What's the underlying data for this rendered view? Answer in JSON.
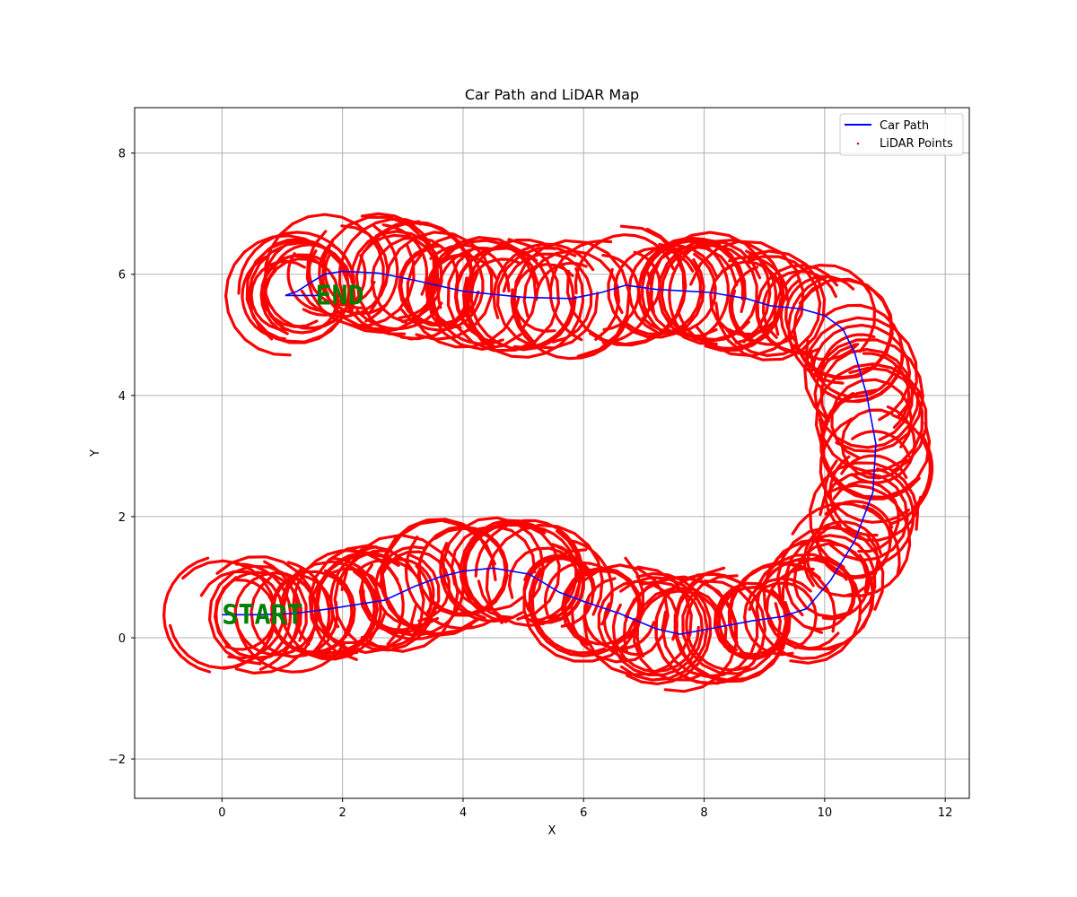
{
  "chart_data": {
    "type": "scatter",
    "title": "Car Path and LiDAR Map",
    "xlabel": "X",
    "ylabel": "Y",
    "xlim": [
      -1.45,
      12.4
    ],
    "ylim": [
      -2.65,
      8.75
    ],
    "xticks": [
      0,
      2,
      4,
      6,
      8,
      10,
      12
    ],
    "yticks": [
      -2,
      0,
      2,
      4,
      6,
      8
    ],
    "xtick_labels": [
      "0",
      "2",
      "4",
      "6",
      "8",
      "10",
      "12"
    ],
    "ytick_labels": [
      "−2",
      "0",
      "2",
      "4",
      "6",
      "8"
    ],
    "grid": true,
    "legend": {
      "placement": "top-right",
      "entries": [
        "Car Path",
        "LiDAR Points"
      ]
    },
    "colors": {
      "path": "#0000ff",
      "lidar": "#ff0000",
      "annotation": "#008000",
      "grid": "#b0b0b0"
    },
    "series": [
      {
        "name": "Car Path",
        "kind": "line",
        "points": [
          [
            0.0,
            0.38
          ],
          [
            0.6,
            0.38
          ],
          [
            1.2,
            0.4
          ],
          [
            1.8,
            0.48
          ],
          [
            2.7,
            0.62
          ],
          [
            3.2,
            0.85
          ],
          [
            3.6,
            1.0
          ],
          [
            4.0,
            1.1
          ],
          [
            4.5,
            1.15
          ],
          [
            5.1,
            1.05
          ],
          [
            5.6,
            0.75
          ],
          [
            6.0,
            0.6
          ],
          [
            6.6,
            0.4
          ],
          [
            7.2,
            0.15
          ],
          [
            7.6,
            0.06
          ],
          [
            8.1,
            0.15
          ],
          [
            8.8,
            0.28
          ],
          [
            9.3,
            0.35
          ],
          [
            9.7,
            0.48
          ],
          [
            10.1,
            0.95
          ],
          [
            10.5,
            1.6
          ],
          [
            10.8,
            2.4
          ],
          [
            10.85,
            3.2
          ],
          [
            10.7,
            4.0
          ],
          [
            10.5,
            4.7
          ],
          [
            10.3,
            5.1
          ],
          [
            10.0,
            5.32
          ],
          [
            9.6,
            5.43
          ],
          [
            9.1,
            5.48
          ],
          [
            8.7,
            5.6
          ],
          [
            8.1,
            5.7
          ],
          [
            7.2,
            5.75
          ],
          [
            6.7,
            5.82
          ],
          [
            6.3,
            5.7
          ],
          [
            5.8,
            5.6
          ],
          [
            5.0,
            5.62
          ],
          [
            4.0,
            5.72
          ],
          [
            3.2,
            5.9
          ],
          [
            2.6,
            6.02
          ],
          [
            2.0,
            6.05
          ],
          [
            1.7,
            6.0
          ],
          [
            1.45,
            5.85
          ],
          [
            1.25,
            5.72
          ],
          [
            1.05,
            5.65
          ],
          [
            1.6,
            5.65
          ]
        ]
      },
      {
        "name": "LiDAR Points",
        "kind": "scatter",
        "description_points_are_ring_clusters_around_path": true
      }
    ],
    "annotations": [
      {
        "text": "START",
        "x": 0.0,
        "y": 0.38
      },
      {
        "text": "END",
        "x": 1.55,
        "y": 5.65
      }
    ]
  }
}
